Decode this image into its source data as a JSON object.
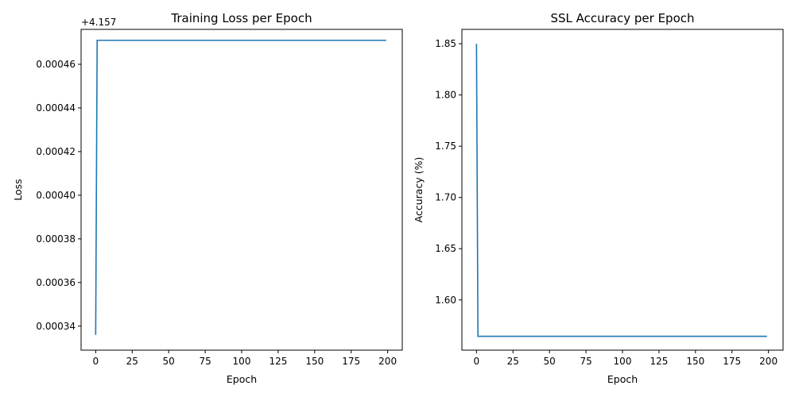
{
  "chart_data": [
    {
      "type": "line",
      "title": "Training Loss per Epoch",
      "xlabel": "Epoch",
      "ylabel": "Loss",
      "y_offset_label": "+4.157",
      "xlim": [
        -10,
        210
      ],
      "ylim": [
        0.000329,
        0.000476
      ],
      "xticks": [
        0,
        25,
        50,
        75,
        100,
        125,
        150,
        175,
        200
      ],
      "xtick_labels": [
        "0",
        "25",
        "50",
        "75",
        "100",
        "125",
        "150",
        "175",
        "200"
      ],
      "yticks": [
        0.00034,
        0.00036,
        0.00038,
        0.0004,
        0.00042,
        0.00044,
        0.00046
      ],
      "ytick_labels": [
        "0.00034",
        "0.00036",
        "0.00038",
        "0.00040",
        "0.00042",
        "0.00044",
        "0.00046"
      ],
      "grid": false,
      "series": [
        {
          "color": "#1f77b4",
          "x": [
            0,
            1,
            199
          ],
          "y": [
            0.000336,
            0.000471,
            0.000471
          ]
        }
      ]
    },
    {
      "type": "line",
      "title": "SSL Accuracy per Epoch",
      "xlabel": "Epoch",
      "ylabel": "Accuracy (%)",
      "y_offset_label": "",
      "xlim": [
        -10,
        210
      ],
      "ylim": [
        1.551,
        1.864
      ],
      "xticks": [
        0,
        25,
        50,
        75,
        100,
        125,
        150,
        175,
        200
      ],
      "xtick_labels": [
        "0",
        "25",
        "50",
        "75",
        "100",
        "125",
        "150",
        "175",
        "200"
      ],
      "yticks": [
        1.6,
        1.65,
        1.7,
        1.75,
        1.8,
        1.85
      ],
      "ytick_labels": [
        "1.60",
        "1.65",
        "1.70",
        "1.75",
        "1.80",
        "1.85"
      ],
      "grid": false,
      "series": [
        {
          "color": "#1f77b4",
          "x": [
            0,
            1,
            199
          ],
          "y": [
            1.85,
            1.5645,
            1.5645
          ]
        }
      ]
    }
  ]
}
